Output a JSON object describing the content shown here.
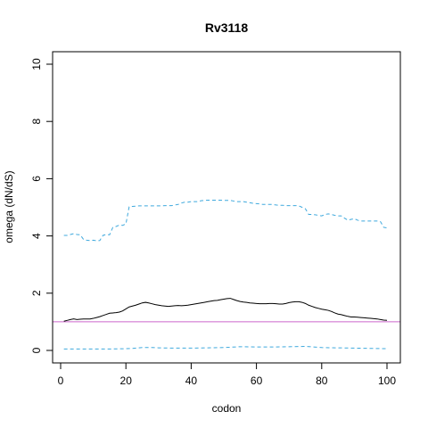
{
  "chart_data": {
    "type": "line",
    "title": "Rv3118",
    "xlabel": "codon",
    "ylabel": "omega (dN/dS)",
    "xlim": [
      0,
      100
    ],
    "ylim": [
      0,
      10
    ],
    "x_ticks": [
      0,
      20,
      40,
      60,
      80,
      100
    ],
    "y_ticks": [
      0,
      2,
      4,
      6,
      8,
      10
    ],
    "grid": false,
    "legend": "none",
    "reference_line": {
      "y": 1,
      "color": "#cc66cc"
    },
    "series": [
      {
        "role": "upper",
        "color": "#3fa9dd",
        "style": "dashed",
        "x": [
          1,
          2,
          3,
          4,
          5,
          6,
          7,
          8,
          9,
          10,
          11,
          12,
          13,
          14,
          15,
          16,
          17,
          18,
          19,
          20,
          21,
          22,
          23,
          24,
          25,
          26,
          27,
          28,
          29,
          30,
          31,
          32,
          33,
          34,
          35,
          36,
          37,
          38,
          39,
          40,
          41,
          42,
          43,
          44,
          45,
          46,
          47,
          48,
          49,
          50,
          51,
          52,
          53,
          54,
          55,
          56,
          57,
          58,
          59,
          60,
          61,
          62,
          63,
          64,
          65,
          66,
          67,
          68,
          69,
          70,
          71,
          72,
          73,
          74,
          75,
          76,
          77,
          78,
          79,
          80,
          81,
          82,
          83,
          84,
          85,
          86,
          87,
          88,
          89,
          90,
          91,
          92,
          93,
          94,
          95,
          96,
          97,
          98,
          99,
          100
        ],
        "y": [
          4.02,
          4.02,
          4.05,
          4.08,
          4.05,
          4.04,
          3.88,
          3.85,
          3.84,
          3.85,
          3.83,
          3.84,
          4.02,
          4.05,
          4.04,
          4.3,
          4.33,
          4.38,
          4.37,
          4.42,
          5.02,
          5.03,
          5.04,
          5.05,
          5.05,
          5.05,
          5.05,
          5.05,
          5.05,
          5.05,
          5.05,
          5.06,
          5.06,
          5.06,
          5.08,
          5.1,
          5.15,
          5.18,
          5.18,
          5.2,
          5.2,
          5.2,
          5.23,
          5.24,
          5.25,
          5.25,
          5.25,
          5.25,
          5.25,
          5.24,
          5.24,
          5.24,
          5.22,
          5.2,
          5.2,
          5.2,
          5.18,
          5.16,
          5.14,
          5.13,
          5.12,
          5.1,
          5.1,
          5.1,
          5.1,
          5.08,
          5.07,
          5.07,
          5.06,
          5.06,
          5.06,
          5.06,
          5.05,
          5.0,
          4.95,
          4.75,
          4.75,
          4.74,
          4.72,
          4.7,
          4.75,
          4.77,
          4.75,
          4.72,
          4.7,
          4.7,
          4.62,
          4.55,
          4.58,
          4.6,
          4.55,
          4.52,
          4.52,
          4.52,
          4.52,
          4.52,
          4.52,
          4.5,
          4.3,
          4.28
        ]
      },
      {
        "role": "estimate",
        "color": "#000000",
        "style": "solid",
        "x": [
          1,
          2,
          3,
          4,
          5,
          6,
          7,
          8,
          9,
          10,
          11,
          12,
          13,
          14,
          15,
          16,
          17,
          18,
          19,
          20,
          21,
          22,
          23,
          24,
          25,
          26,
          27,
          28,
          29,
          30,
          31,
          32,
          33,
          34,
          35,
          36,
          37,
          38,
          39,
          40,
          41,
          42,
          43,
          44,
          45,
          46,
          47,
          48,
          49,
          50,
          51,
          52,
          53,
          54,
          55,
          56,
          57,
          58,
          59,
          60,
          61,
          62,
          63,
          64,
          65,
          66,
          67,
          68,
          69,
          70,
          71,
          72,
          73,
          74,
          75,
          76,
          77,
          78,
          79,
          80,
          81,
          82,
          83,
          84,
          85,
          86,
          87,
          88,
          89,
          90,
          91,
          92,
          93,
          94,
          95,
          96,
          97,
          98,
          99,
          100
        ],
        "y": [
          1.02,
          1.05,
          1.08,
          1.1,
          1.08,
          1.09,
          1.1,
          1.1,
          1.1,
          1.12,
          1.15,
          1.18,
          1.22,
          1.26,
          1.3,
          1.31,
          1.32,
          1.34,
          1.38,
          1.45,
          1.52,
          1.55,
          1.58,
          1.62,
          1.66,
          1.68,
          1.66,
          1.63,
          1.6,
          1.58,
          1.56,
          1.55,
          1.54,
          1.55,
          1.56,
          1.57,
          1.56,
          1.57,
          1.58,
          1.6,
          1.62,
          1.64,
          1.66,
          1.68,
          1.7,
          1.72,
          1.74,
          1.75,
          1.77,
          1.79,
          1.81,
          1.82,
          1.78,
          1.74,
          1.71,
          1.69,
          1.68,
          1.66,
          1.65,
          1.64,
          1.63,
          1.63,
          1.63,
          1.64,
          1.64,
          1.63,
          1.62,
          1.62,
          1.64,
          1.67,
          1.69,
          1.7,
          1.7,
          1.68,
          1.64,
          1.58,
          1.54,
          1.5,
          1.47,
          1.44,
          1.42,
          1.4,
          1.36,
          1.31,
          1.27,
          1.25,
          1.22,
          1.19,
          1.17,
          1.17,
          1.16,
          1.15,
          1.14,
          1.13,
          1.12,
          1.11,
          1.1,
          1.08,
          1.06,
          1.05
        ]
      },
      {
        "role": "lower",
        "color": "#3fa9dd",
        "style": "dashed",
        "x": [
          1,
          5,
          10,
          15,
          20,
          22,
          25,
          28,
          30,
          35,
          40,
          45,
          50,
          55,
          60,
          65,
          70,
          75,
          80,
          85,
          90,
          95,
          100
        ],
        "y": [
          0.05,
          0.05,
          0.05,
          0.05,
          0.06,
          0.07,
          0.1,
          0.1,
          0.09,
          0.08,
          0.08,
          0.09,
          0.1,
          0.13,
          0.12,
          0.12,
          0.13,
          0.14,
          0.1,
          0.09,
          0.08,
          0.07,
          0.06
        ]
      }
    ]
  }
}
